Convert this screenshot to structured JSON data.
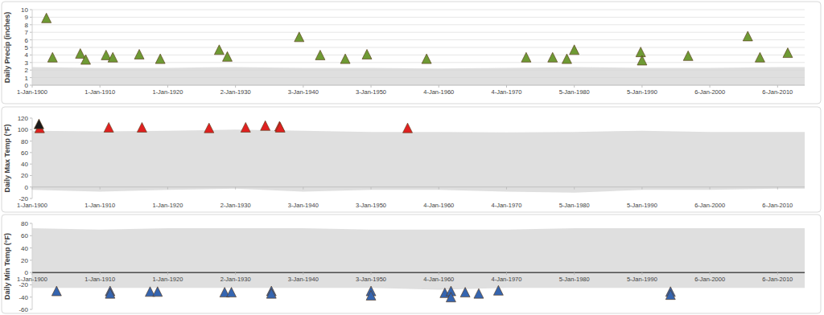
{
  "chart_data": [
    {
      "type": "scatter",
      "y_label": "Daily Precip (inches)",
      "xlim": [
        1900,
        2014
      ],
      "xticks": [
        {
          "value": 1900,
          "label": "1-Jan-1900"
        },
        {
          "value": 1910,
          "label": "1-Jan-1910"
        },
        {
          "value": 1920,
          "label": "1-Jan-1920"
        },
        {
          "value": 1930,
          "label": "2-Jan-1930"
        },
        {
          "value": 1940,
          "label": "3-Jan-1940"
        },
        {
          "value": 1950,
          "label": "3-Jan-1950"
        },
        {
          "value": 1960,
          "label": "4-Jan-1960"
        },
        {
          "value": 1970,
          "label": "4-Jan-1970"
        },
        {
          "value": 1980,
          "label": "5-Jan-1980"
        },
        {
          "value": 1990,
          "label": "5-Jan-1990"
        },
        {
          "value": 2000,
          "label": "6-Jan-2000"
        },
        {
          "value": 2010,
          "label": "6-Jan-2010"
        }
      ],
      "ylim": [
        0,
        10
      ],
      "yticks": [
        0,
        1,
        2,
        3,
        4,
        5,
        6,
        7,
        8,
        9,
        10
      ],
      "grid": true,
      "series": [
        {
          "type": "area",
          "color": "#d4d4d4",
          "x": [
            1900,
            1910,
            1920,
            1930,
            1940,
            1950,
            1960,
            1970,
            1980,
            1990,
            2000,
            2010,
            2014
          ],
          "values": [
            2.4,
            2.3,
            2.3,
            2.4,
            2.3,
            2.3,
            2.2,
            2.3,
            2.4,
            2.3,
            2.3,
            2.4,
            2.4
          ],
          "low": [
            0,
            0,
            0,
            0,
            0,
            0,
            0,
            0,
            0,
            0,
            0,
            0,
            0
          ]
        },
        {
          "type": "scatter",
          "marker": "triangle",
          "color": "#6e9a34",
          "x": [
            1902.1,
            1903.0,
            1907.1,
            1907.9,
            1910.9,
            1911.9,
            1915.8,
            1918.9,
            1927.6,
            1928.8,
            1939.4,
            1942.5,
            1946.2,
            1949.4,
            1958.2,
            1972.9,
            1976.8,
            1978.9,
            1980.0,
            1989.8,
            1990.0,
            1996.8,
            2005.6,
            2007.4,
            2011.5
          ],
          "values": [
            8.9,
            3.7,
            4.2,
            3.4,
            4.0,
            3.7,
            4.1,
            3.5,
            4.7,
            3.8,
            6.4,
            4.0,
            3.5,
            4.1,
            3.5,
            3.7,
            3.7,
            3.5,
            4.7,
            4.4,
            3.3,
            3.9,
            6.5,
            3.7,
            4.3
          ]
        }
      ]
    },
    {
      "type": "scatter",
      "y_label": "Daily Max Temp (°F)",
      "xlim": [
        1900,
        2014
      ],
      "xticks": [
        {
          "value": 1900,
          "label": "1-Jan-1900"
        },
        {
          "value": 1910,
          "label": "1-Jan-1910"
        },
        {
          "value": 1920,
          "label": "1-Jan-1920"
        },
        {
          "value": 1930,
          "label": "2-Jan-1930"
        },
        {
          "value": 1940,
          "label": "3-Jan-1940"
        },
        {
          "value": 1950,
          "label": "3-Jan-1950"
        },
        {
          "value": 1960,
          "label": "4-Jan-1960"
        },
        {
          "value": 1970,
          "label": "4-Jan-1970"
        },
        {
          "value": 1980,
          "label": "5-Jan-1980"
        },
        {
          "value": 1990,
          "label": "5-Jan-1990"
        },
        {
          "value": 2000,
          "label": "6-Jan-2000"
        },
        {
          "value": 2010,
          "label": "6-Jan-2010"
        }
      ],
      "ylim": [
        -20,
        120
      ],
      "yticks": [
        -20,
        0,
        20,
        40,
        60,
        80,
        100,
        120
      ],
      "grid": false,
      "series": [
        {
          "type": "area",
          "color": "#d4d4d4",
          "x": [
            1900,
            1910,
            1920,
            1930,
            1940,
            1950,
            1960,
            1970,
            1980,
            1990,
            2000,
            2010,
            2014
          ],
          "values": [
            98,
            97,
            98,
            100,
            98,
            96,
            96,
            95,
            96,
            98,
            96,
            96,
            96
          ],
          "low": [
            -5,
            -8,
            -5,
            -3,
            -8,
            -5,
            -5,
            -8,
            -10,
            -5,
            -5,
            -3,
            -3
          ]
        },
        {
          "type": "scatter",
          "marker": "triangle",
          "colors": [
            "#e02020",
            "#1a1a1a",
            "#e02020",
            "#e02020",
            "#e02020",
            "#e02020",
            "#e02020",
            "#e02020",
            "#e02020",
            "#e02020"
          ],
          "x": [
            1901.1,
            1901.0,
            1911.3,
            1916.2,
            1926.1,
            1931.5,
            1934.4,
            1936.5,
            1936.6,
            1955.4
          ],
          "values": [
            103,
            110,
            104,
            104,
            103,
            104,
            107,
            106,
            104,
            103
          ]
        }
      ]
    },
    {
      "type": "scatter",
      "y_label": "Daily Min Temp (°F)",
      "xlim": [
        1900,
        2014
      ],
      "xticks": [
        {
          "value": 1900,
          "label": "1-Jan-1900"
        },
        {
          "value": 1910,
          "label": "1-Jan-1910"
        },
        {
          "value": 1920,
          "label": "1-Jan-1920"
        },
        {
          "value": 1930,
          "label": "2-Jan-1930"
        },
        {
          "value": 1940,
          "label": "3-Jan-1940"
        },
        {
          "value": 1950,
          "label": "3-Jan-1950"
        },
        {
          "value": 1960,
          "label": "4-Jan-1960"
        },
        {
          "value": 1970,
          "label": "4-Jan-1970"
        },
        {
          "value": 1980,
          "label": "5-Jan-1980"
        },
        {
          "value": 1990,
          "label": "5-Jan-1990"
        },
        {
          "value": 2000,
          "label": "6-Jan-2000"
        },
        {
          "value": 2010,
          "label": "6-Jan-2010"
        }
      ],
      "ylim": [
        -60,
        80
      ],
      "yticks": [
        -60,
        -40,
        -20,
        0,
        20,
        40,
        60,
        80
      ],
      "grid": false,
      "series": [
        {
          "type": "area",
          "color": "#d4d4d4",
          "x": [
            1900,
            1910,
            1920,
            1930,
            1940,
            1950,
            1960,
            1970,
            1980,
            1990,
            2000,
            2010,
            2014
          ],
          "values": [
            72,
            70,
            72,
            72,
            72,
            70,
            70,
            70,
            72,
            72,
            72,
            72,
            72
          ],
          "low": [
            -25,
            -25,
            -25,
            -25,
            -25,
            -25,
            -28,
            -25,
            -25,
            -25,
            -25,
            -25,
            -25
          ]
        },
        {
          "type": "scatter",
          "marker": "triangle",
          "color": "#3565b0",
          "x": [
            1903.6,
            1911.5,
            1911.5,
            1917.4,
            1918.5,
            1928.4,
            1929.4,
            1935.3,
            1935.3,
            1950.0,
            1950.0,
            1960.9,
            1961.8,
            1961.8,
            1963.9,
            1965.9,
            1968.8,
            1994.2,
            1994.2
          ],
          "values": [
            -30,
            -30,
            -34,
            -31,
            -31,
            -32,
            -32,
            -30,
            -34,
            -30,
            -37,
            -33,
            -30,
            -40,
            -32,
            -34,
            -29,
            -31,
            -36
          ]
        }
      ]
    }
  ]
}
